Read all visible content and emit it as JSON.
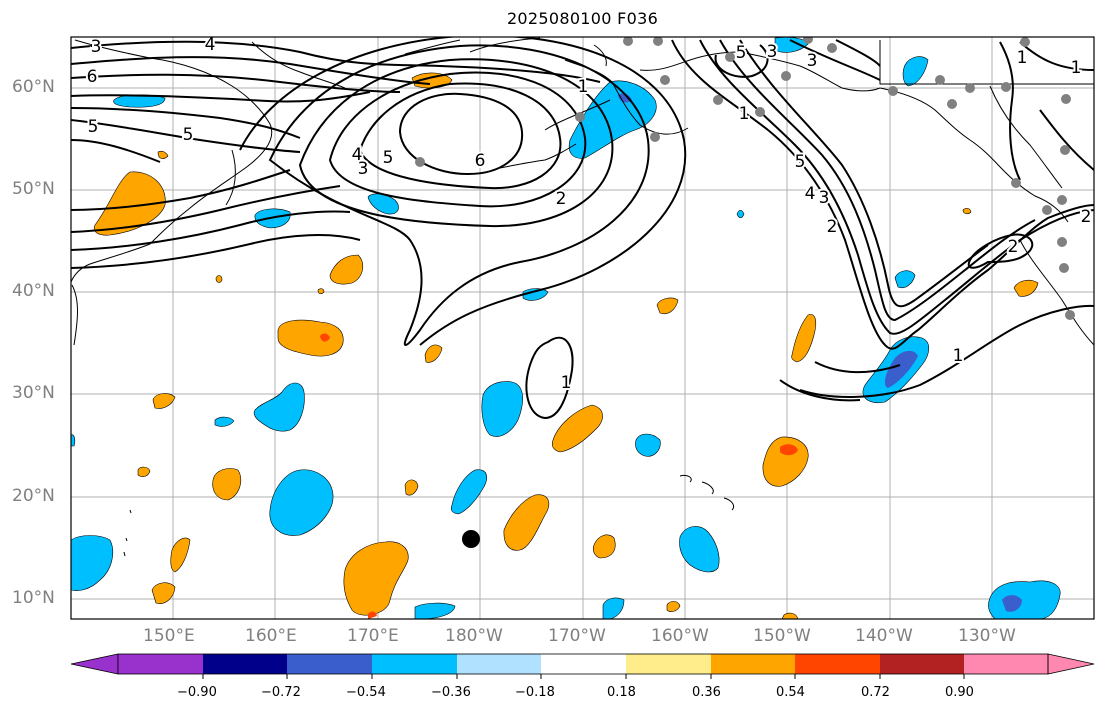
{
  "title": "2025080100 F036",
  "lat_labels": [
    "60°N",
    "50°N",
    "40°N",
    "30°N",
    "20°N",
    "10°N"
  ],
  "lon_labels": [
    "150°E",
    "160°E",
    "170°E",
    "180°W",
    "170°W",
    "160°W",
    "150°W",
    "140°W",
    "130°W"
  ],
  "contour_labels": [
    "3",
    "4",
    "6",
    "5",
    "5",
    "4",
    "3",
    "5",
    "6",
    "1",
    "2",
    "1",
    "1",
    "2",
    "1",
    "5",
    "4",
    "3",
    "2",
    "1",
    "5",
    "3",
    "3",
    "1",
    "2"
  ],
  "colorbar": {
    "ticks": [
      "−0.90",
      "−0.72",
      "−0.54",
      "−0.36",
      "−0.18",
      "0.18",
      "0.36",
      "0.54",
      "0.72",
      "0.90"
    ],
    "colors": [
      "#9932cc",
      "#00008b",
      "#3a5fcd",
      "#00bfff",
      "#b0e2ff",
      "#ffffff",
      "#ffec8b",
      "#ffa500",
      "#ff4500",
      "#b22222",
      "#ff88b0"
    ]
  },
  "colors": {
    "orange": "#ffa500",
    "cyan": "#00bfff",
    "blue": "#3a5fcd",
    "red": "#ff4500",
    "grid": "#b0b0b0",
    "contour": "#000000",
    "station_dot": "#808080"
  },
  "marker": "storm-center-dot"
}
